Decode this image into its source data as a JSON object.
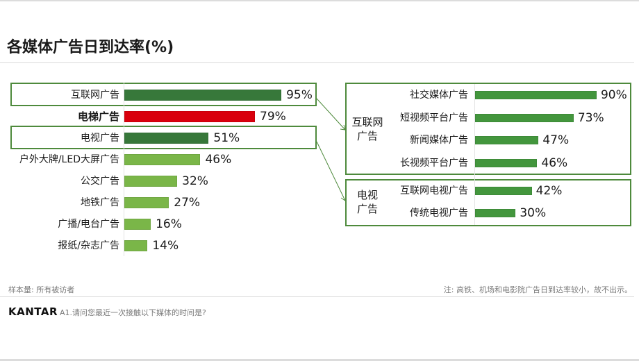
{
  "title": "各媒体广告日到达率(%)",
  "colors": {
    "dark_green": "#37783a",
    "red": "#d9000d",
    "light_green": "#7ab648",
    "mid_green": "#43963d",
    "box_border": "#4e8a3c"
  },
  "left_chart": {
    "rows": [
      {
        "label": "互联网广告",
        "value": 95,
        "display": "95%",
        "color": "dark_green",
        "bold": false
      },
      {
        "label": "电梯广告",
        "value": 79,
        "display": "79%",
        "color": "red",
        "bold": true
      },
      {
        "label": "电视广告",
        "value": 51,
        "display": "51%",
        "color": "dark_green",
        "bold": false
      },
      {
        "label": "户外大牌/LED大屏广告",
        "value": 46,
        "display": "46%",
        "color": "light_green",
        "bold": false
      },
      {
        "label": "公交广告",
        "value": 32,
        "display": "32%",
        "color": "light_green",
        "bold": false
      },
      {
        "label": "地铁广告",
        "value": 27,
        "display": "27%",
        "color": "light_green",
        "bold": false
      },
      {
        "label": "广播/电台广告",
        "value": 16,
        "display": "16%",
        "color": "light_green",
        "bold": false
      },
      {
        "label": "报纸/杂志广告",
        "value": 14,
        "display": "14%",
        "color": "light_green",
        "bold": false
      }
    ]
  },
  "right_chart": {
    "groups": [
      {
        "group_label_line1": "互联网",
        "group_label_line2": "广告",
        "rows": [
          {
            "label": "社交媒体广告",
            "value": 90,
            "display": "90%"
          },
          {
            "label": "短视频平台广告",
            "value": 73,
            "display": "73%"
          },
          {
            "label": "新闻媒体广告",
            "value": 47,
            "display": "47%"
          },
          {
            "label": "长视频平台广告",
            "value": 46,
            "display": "46%"
          }
        ]
      },
      {
        "group_label_line1": "电视",
        "group_label_line2": "广告",
        "rows": [
          {
            "label": "互联网电视广告",
            "value": 42,
            "display": "42%"
          },
          {
            "label": "传统电视广告",
            "value": 30,
            "display": "30%"
          }
        ]
      }
    ]
  },
  "footer": {
    "sample": "样本量:  所有被访者",
    "note": "注:  高铁、机场和电影院广告日到达率较小，故不出示。",
    "brand": "KANTAR",
    "question": "A1.请问您最近一次接触以下媒体的时间是?"
  },
  "chart_data": {
    "type": "bar",
    "title": "各媒体广告日到达率(%)",
    "orientation": "horizontal",
    "xlabel": "",
    "ylabel": "",
    "grid": false,
    "legend": null,
    "charts": [
      {
        "name": "各媒体广告",
        "categories": [
          "互联网广告",
          "电梯广告",
          "电视广告",
          "户外大牌/LED大屏广告",
          "公交广告",
          "地铁广告",
          "广播/电台广告",
          "报纸/杂志广告"
        ],
        "values": [
          95,
          79,
          51,
          46,
          32,
          27,
          16,
          14
        ],
        "unit": "%",
        "highlight": "电梯广告"
      },
      {
        "name": "互联网广告",
        "categories": [
          "社交媒体广告",
          "短视频平台广告",
          "新闻媒体广告",
          "长视频平台广告"
        ],
        "values": [
          90,
          73,
          47,
          46
        ],
        "unit": "%"
      },
      {
        "name": "电视广告",
        "categories": [
          "互联网电视广告",
          "传统电视广告"
        ],
        "values": [
          42,
          30
        ],
        "unit": "%"
      }
    ],
    "annotations": [
      "注: 高铁、机场和电影院广告日到达率较小，故不出示。",
      "样本量: 所有被访者"
    ]
  }
}
